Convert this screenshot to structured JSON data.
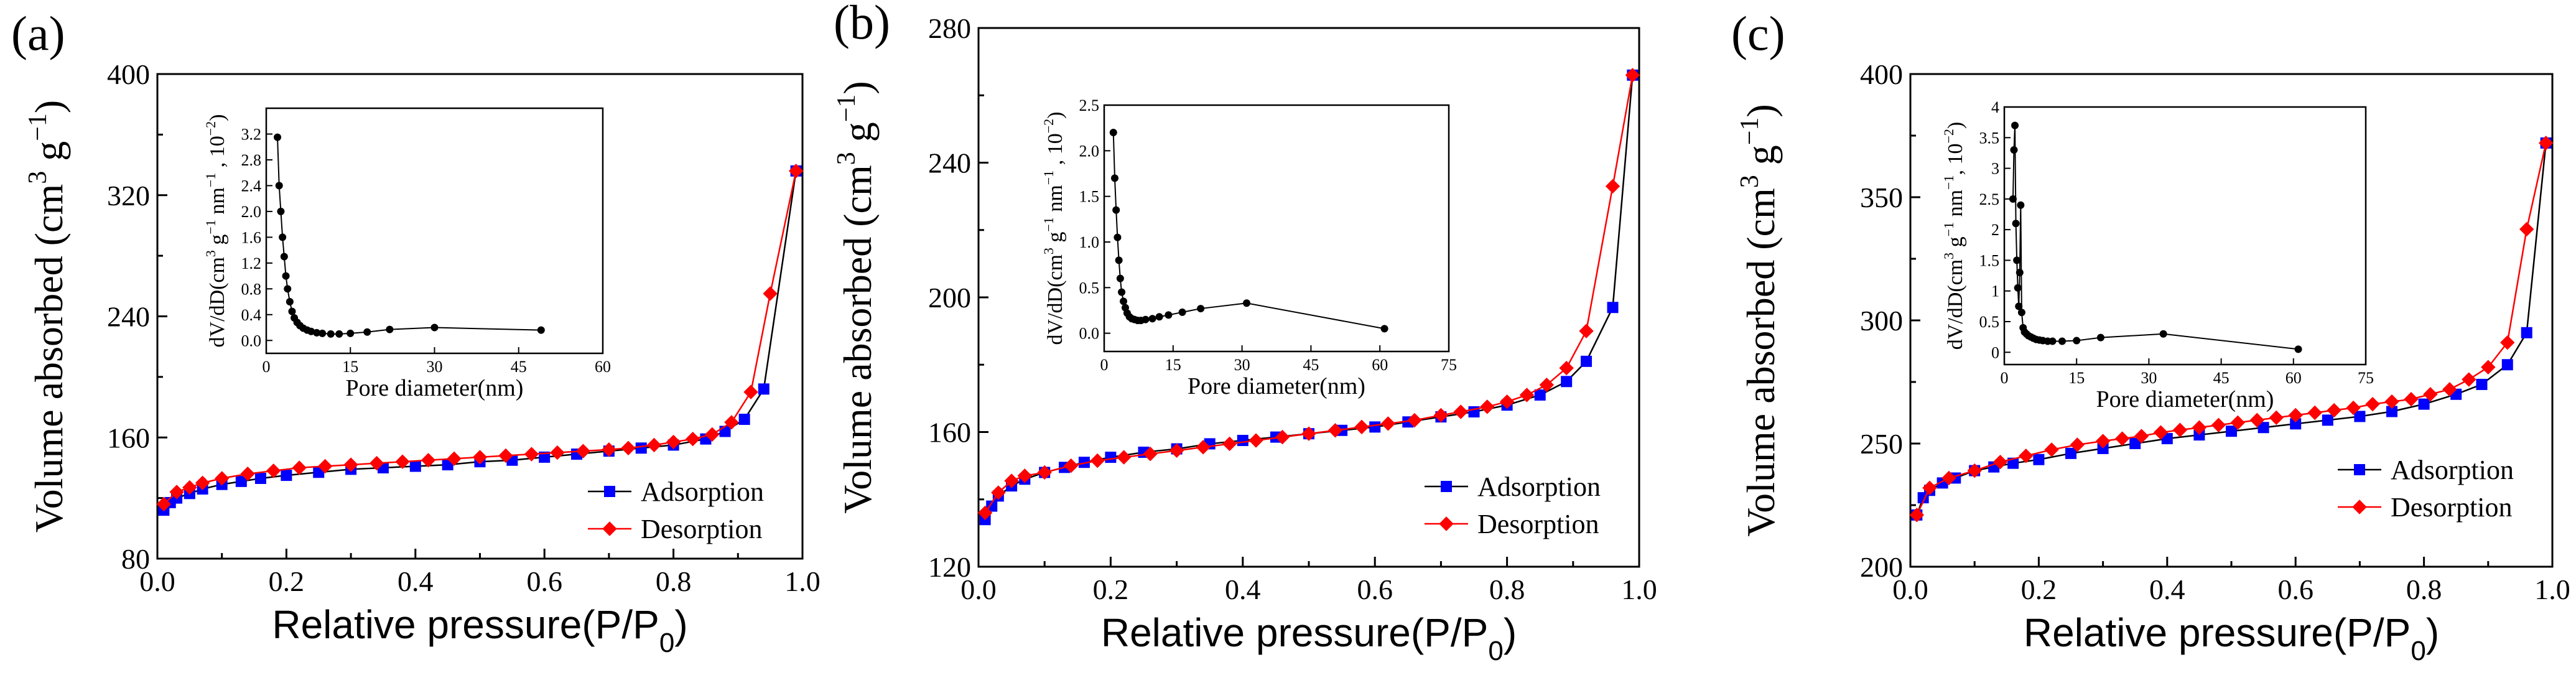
{
  "figure": {
    "colors": {
      "adsorption": "#0000ff",
      "desorption": "#ff0000",
      "axis": "#000000",
      "inset_marker": "#000000"
    },
    "icons": {
      "adsorption_marker": "square-marker-icon",
      "desorption_marker": "diamond-marker-icon",
      "inset_marker": "circle-marker-icon"
    }
  },
  "chart_data": [
    {
      "panel_label": "(a)",
      "type": "line",
      "xlabel": "Relative pressure(P/P0)",
      "xlabel_main": "Relative pressure(P/P",
      "xlabel_sub": "0",
      "xlabel_close": ")",
      "ylabel_main": "Volume absorbed (cm",
      "ylabel_sup1": "3",
      "ylabel_mid": " g",
      "ylabel_sup2": "−1",
      "ylabel_close": ")",
      "xlim": [
        0.0,
        1.0
      ],
      "ylim": [
        80,
        400
      ],
      "xticks": [
        0.0,
        0.2,
        0.4,
        0.6,
        0.8,
        1.0
      ],
      "xtick_labels": [
        "0.0",
        "0.2",
        "0.4",
        "0.6",
        "0.8",
        "1.0"
      ],
      "yticks": [
        80,
        160,
        240,
        320,
        400
      ],
      "ytick_labels": [
        "80",
        "160",
        "240",
        "320",
        "400"
      ],
      "legend": [
        "Adsorption",
        "Desorption"
      ],
      "legend_position": "lower-right",
      "series": [
        {
          "name": "Adsorption",
          "x": [
            0.01,
            0.02,
            0.03,
            0.05,
            0.07,
            0.1,
            0.13,
            0.16,
            0.2,
            0.25,
            0.3,
            0.35,
            0.4,
            0.45,
            0.5,
            0.55,
            0.6,
            0.65,
            0.7,
            0.75,
            0.8,
            0.85,
            0.88,
            0.91,
            0.94,
            0.99
          ],
          "y": [
            112,
            117,
            120,
            123,
            126,
            129,
            131,
            133,
            135,
            137,
            139,
            140,
            141,
            142,
            144,
            145,
            147,
            149,
            151,
            153,
            155,
            159,
            164,
            172,
            192,
            336
          ]
        },
        {
          "name": "Desorption",
          "x": [
            0.99,
            0.95,
            0.92,
            0.89,
            0.86,
            0.83,
            0.8,
            0.77,
            0.73,
            0.7,
            0.66,
            0.62,
            0.58,
            0.54,
            0.5,
            0.46,
            0.42,
            0.38,
            0.34,
            0.3,
            0.26,
            0.22,
            0.18,
            0.14,
            0.1,
            0.07,
            0.05,
            0.03,
            0.01
          ],
          "y": [
            336,
            255,
            190,
            170,
            162,
            159,
            157,
            155,
            153,
            152,
            151,
            150,
            149,
            148,
            147,
            146,
            145,
            144,
            143,
            142,
            141,
            140,
            138,
            136,
            133,
            130,
            127,
            124,
            116
          ]
        }
      ],
      "inset": {
        "xlabel": "Pore diameter(nm)",
        "ylabel_main": "dV/dD(cm",
        "ylabel_sup1": "3",
        "ylabel_mid": " g",
        "ylabel_sup2": "−1",
        "ylabel_mid2": " nm",
        "ylabel_sup3": "−1",
        "ylabel_mid3": " , 10",
        "ylabel_sup4": "−2",
        "ylabel_close": ")",
        "xlim": [
          0,
          60
        ],
        "ylim": [
          -0.2,
          3.6
        ],
        "xticks": [
          0,
          15,
          30,
          45,
          60
        ],
        "xtick_labels": [
          "0",
          "15",
          "30",
          "45",
          "60"
        ],
        "yticks": [
          0.0,
          0.4,
          0.8,
          1.2,
          1.6,
          2.0,
          2.4,
          2.8,
          3.2
        ],
        "ytick_labels": [
          "0.0",
          "0.4",
          "0.8",
          "1.2",
          "1.6",
          "2.0",
          "2.4",
          "2.8",
          "3.2"
        ],
        "x": [
          2.0,
          2.3,
          2.6,
          2.9,
          3.2,
          3.5,
          3.8,
          4.2,
          4.6,
          5.0,
          5.5,
          6.0,
          6.6,
          7.3,
          8.0,
          9.0,
          10.0,
          11.5,
          13.0,
          15.0,
          18.0,
          22.0,
          30.0,
          49.0
        ],
        "y": [
          3.15,
          2.4,
          2.0,
          1.6,
          1.3,
          1.0,
          0.8,
          0.6,
          0.45,
          0.35,
          0.28,
          0.23,
          0.19,
          0.16,
          0.14,
          0.12,
          0.11,
          0.1,
          0.1,
          0.11,
          0.13,
          0.17,
          0.2,
          0.16
        ]
      }
    },
    {
      "panel_label": "(b)",
      "type": "line",
      "xlabel": "Relative pressure(P/P0)",
      "xlabel_main": "Relative pressure(P/P",
      "xlabel_sub": "0",
      "xlabel_close": ")",
      "ylabel_main": "Volume absorbed (cm",
      "ylabel_sup1": "3",
      "ylabel_mid": " g",
      "ylabel_sup2": "−1",
      "ylabel_close": ")",
      "xlim": [
        0.0,
        1.0
      ],
      "ylim": [
        120,
        280
      ],
      "xticks": [
        0.0,
        0.2,
        0.4,
        0.6,
        0.8,
        1.0
      ],
      "xtick_labels": [
        "0.0",
        "0.2",
        "0.4",
        "0.6",
        "0.8",
        "1.0"
      ],
      "yticks": [
        120,
        160,
        200,
        240,
        280
      ],
      "ytick_labels": [
        "120",
        "160",
        "200",
        "240",
        "280"
      ],
      "legend": [
        "Adsorption",
        "Desorption"
      ],
      "legend_position": "lower-right",
      "series": [
        {
          "name": "Adsorption",
          "x": [
            0.01,
            0.02,
            0.03,
            0.05,
            0.07,
            0.1,
            0.13,
            0.16,
            0.2,
            0.25,
            0.3,
            0.35,
            0.4,
            0.45,
            0.5,
            0.55,
            0.6,
            0.65,
            0.7,
            0.75,
            0.8,
            0.85,
            0.89,
            0.92,
            0.96,
            0.99
          ],
          "y": [
            134,
            138,
            141,
            144,
            146,
            148,
            149.5,
            151,
            152.5,
            154,
            155,
            156.5,
            157.5,
            158.5,
            159.5,
            160.5,
            161.5,
            163,
            164.5,
            166,
            168,
            171,
            175,
            181,
            197,
            266
          ]
        },
        {
          "name": "Desorption",
          "x": [
            0.99,
            0.96,
            0.92,
            0.89,
            0.86,
            0.83,
            0.8,
            0.77,
            0.73,
            0.7,
            0.66,
            0.62,
            0.58,
            0.54,
            0.5,
            0.46,
            0.42,
            0.38,
            0.34,
            0.3,
            0.26,
            0.22,
            0.18,
            0.14,
            0.1,
            0.07,
            0.05,
            0.03,
            0.01
          ],
          "y": [
            266,
            233,
            190,
            179,
            174,
            171,
            169,
            167.5,
            166,
            165,
            163.5,
            162.5,
            161.5,
            160.5,
            159.5,
            158.5,
            157.5,
            156.5,
            155.5,
            154.5,
            153.5,
            152.5,
            151.5,
            150,
            148,
            147,
            145.5,
            142,
            136
          ]
        }
      ],
      "inset": {
        "xlabel": "Pore diameter(nm)",
        "ylabel_main": "dV/dD(cm",
        "ylabel_sup1": "3",
        "ylabel_mid": " g",
        "ylabel_sup2": "−1",
        "ylabel_mid2": " nm",
        "ylabel_sup3": "−1",
        "ylabel_mid3": " , 10",
        "ylabel_sup4": "−2",
        "ylabel_close": ")",
        "xlim": [
          0,
          75
        ],
        "ylim": [
          -0.2,
          2.5
        ],
        "xticks": [
          0,
          15,
          30,
          45,
          60,
          75
        ],
        "xtick_labels": [
          "0",
          "15",
          "30",
          "45",
          "60",
          "75"
        ],
        "yticks": [
          0.0,
          0.5,
          1.0,
          1.5,
          2.0,
          2.5
        ],
        "ytick_labels": [
          "0.0",
          "0.5",
          "1.0",
          "1.5",
          "2.0",
          "2.5"
        ],
        "x": [
          2.0,
          2.3,
          2.6,
          2.9,
          3.2,
          3.5,
          3.8,
          4.2,
          4.6,
          5.0,
          5.5,
          6.0,
          6.6,
          7.3,
          8.0,
          9.0,
          10.5,
          12.0,
          14.0,
          17.0,
          21.0,
          31.0,
          61.0
        ],
        "y": [
          2.2,
          1.7,
          1.35,
          1.05,
          0.8,
          0.6,
          0.45,
          0.35,
          0.28,
          0.22,
          0.18,
          0.16,
          0.15,
          0.14,
          0.14,
          0.15,
          0.16,
          0.18,
          0.2,
          0.23,
          0.27,
          0.33,
          0.05
        ]
      }
    },
    {
      "panel_label": "(c)",
      "type": "line",
      "xlabel": "Relative pressure(P/P0)",
      "xlabel_main": "Relative pressure(P/P",
      "xlabel_sub": "0",
      "xlabel_close": ")",
      "ylabel_main": "Volume absorbed (cm",
      "ylabel_sup1": "3",
      "ylabel_mid": " g",
      "ylabel_sup2": "−1",
      "ylabel_close": ")",
      "xlim": [
        0.0,
        1.0
      ],
      "ylim": [
        200,
        400
      ],
      "xticks": [
        0.0,
        0.2,
        0.4,
        0.6,
        0.8,
        1.0
      ],
      "xtick_labels": [
        "0.0",
        "0.2",
        "0.4",
        "0.6",
        "0.8",
        "1.0"
      ],
      "yticks": [
        200,
        250,
        300,
        350,
        400
      ],
      "ytick_labels": [
        "200",
        "250",
        "300",
        "350",
        "400"
      ],
      "legend": [
        "Adsorption",
        "Desorption"
      ],
      "legend_position": "lower-right",
      "series": [
        {
          "name": "Adsorption",
          "x": [
            0.01,
            0.02,
            0.03,
            0.05,
            0.07,
            0.1,
            0.13,
            0.16,
            0.2,
            0.25,
            0.3,
            0.35,
            0.4,
            0.45,
            0.5,
            0.55,
            0.6,
            0.65,
            0.7,
            0.75,
            0.8,
            0.85,
            0.89,
            0.93,
            0.96,
            0.99
          ],
          "y": [
            221,
            228,
            231,
            234,
            236,
            239,
            240.5,
            242,
            243.5,
            246,
            248,
            250,
            252,
            253.5,
            255,
            256.5,
            258,
            259.5,
            261,
            263,
            266,
            270,
            274,
            282,
            295,
            372
          ]
        },
        {
          "name": "Desorption",
          "x": [
            0.99,
            0.96,
            0.93,
            0.9,
            0.87,
            0.84,
            0.81,
            0.78,
            0.75,
            0.72,
            0.69,
            0.66,
            0.63,
            0.6,
            0.57,
            0.54,
            0.51,
            0.48,
            0.45,
            0.42,
            0.39,
            0.36,
            0.33,
            0.3,
            0.26,
            0.22,
            0.18,
            0.14,
            0.1,
            0.06,
            0.03,
            0.01
          ],
          "y": [
            372,
            337,
            291,
            281,
            276,
            272,
            270,
            268,
            267,
            266,
            264.5,
            263.5,
            262.5,
            261.5,
            260.5,
            259.5,
            258.5,
            257.5,
            256.5,
            255.5,
            254.5,
            253,
            252,
            251,
            249.5,
            247.5,
            245,
            242.5,
            239,
            236,
            232,
            221
          ]
        }
      ],
      "inset": {
        "xlabel": "Pore diameter(nm)",
        "ylabel_main": "dV/dD(cm",
        "ylabel_sup1": "3",
        "ylabel_mid": " g",
        "ylabel_sup2": "−1",
        "ylabel_mid2": " nm",
        "ylabel_sup3": "−1",
        "ylabel_mid3": ", 10",
        "ylabel_sup4": "−2",
        "ylabel_close": ")",
        "xlim": [
          0,
          75
        ],
        "ylim": [
          -0.2,
          4
        ],
        "xticks": [
          0,
          15,
          30,
          45,
          60,
          75
        ],
        "xtick_labels": [
          "0",
          "15",
          "30",
          "45",
          "60",
          "75"
        ],
        "yticks": [
          0,
          0.5,
          1,
          1.5,
          2,
          2.5,
          3,
          3.5,
          4
        ],
        "ytick_labels": [
          "0",
          "0.5",
          "1",
          "1.5",
          "2",
          "2.5",
          "3",
          "3.5",
          "4"
        ],
        "x": [
          1.8,
          2.0,
          2.2,
          2.4,
          2.6,
          2.8,
          3.0,
          3.2,
          3.4,
          3.6,
          3.9,
          4.2,
          4.6,
          5.0,
          5.5,
          6.0,
          6.6,
          7.3,
          8.0,
          9.0,
          10.0,
          12.0,
          15.0,
          20.0,
          33.0,
          61.0
        ],
        "y": [
          2.5,
          3.3,
          3.7,
          2.1,
          1.5,
          1.05,
          0.75,
          1.3,
          2.4,
          0.65,
          0.4,
          0.33,
          0.3,
          0.27,
          0.25,
          0.23,
          0.21,
          0.2,
          0.19,
          0.18,
          0.18,
          0.18,
          0.19,
          0.24,
          0.3,
          0.05
        ]
      }
    }
  ]
}
